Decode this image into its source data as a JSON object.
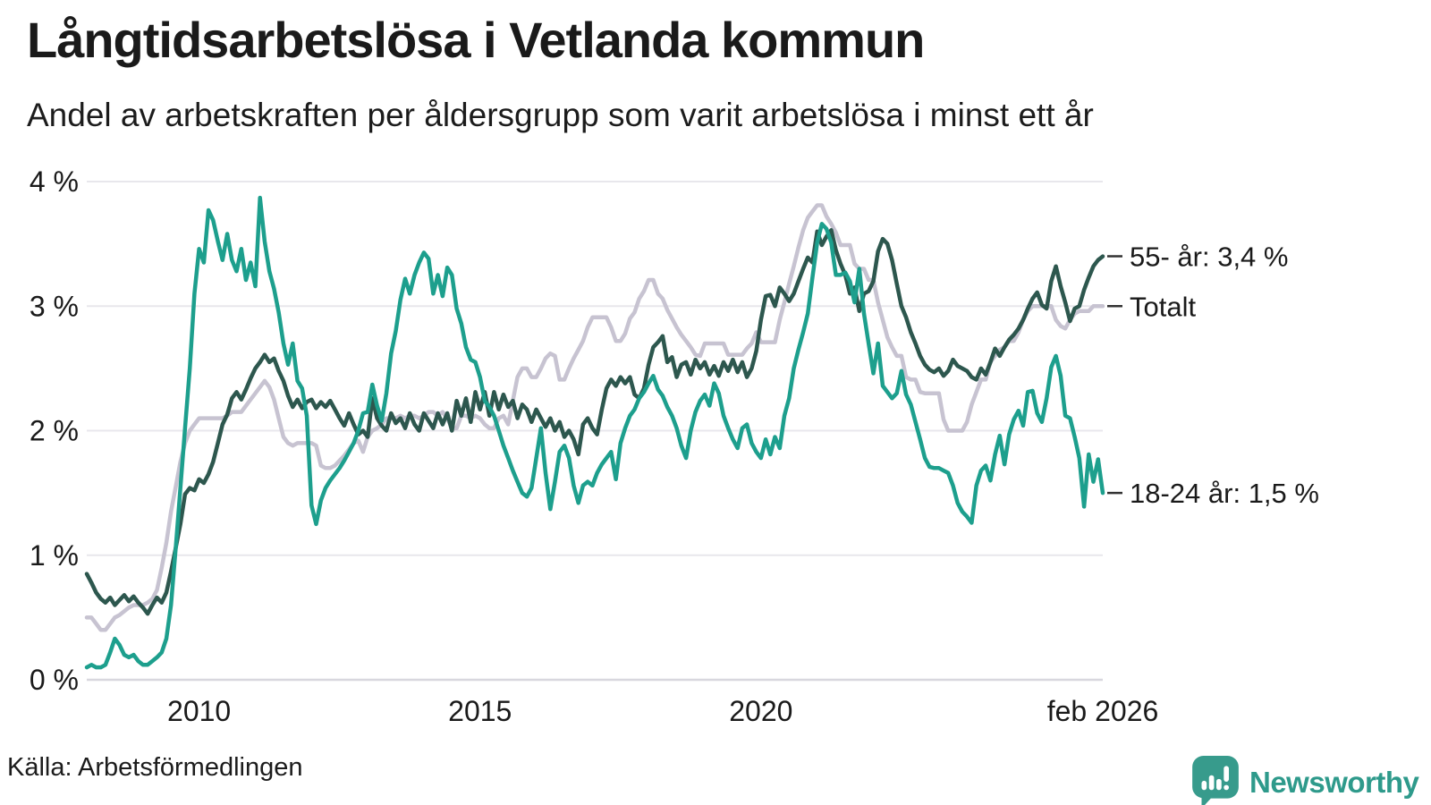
{
  "header": {
    "title": "Långtidsarbetslösa i Vetlanda kommun",
    "subtitle": "Andel av arbetskraften per åldersgrupp som varit arbetslösa i minst ett år"
  },
  "footer": {
    "source": "Källa: Arbetsförmedlingen",
    "brand": "Newsworthy"
  },
  "colors": {
    "series_18_24": "#1d9f8d",
    "series_55plus": "#2d574e",
    "series_total": "#c7c3d1",
    "gridline": "#e8e7ec",
    "axis_line": "#d8d7de",
    "text": "#1a1a1a",
    "brand_teal": "#379b8c"
  },
  "chart_data": {
    "type": "line",
    "title": "Långtidsarbetslösa i Vetlanda kommun",
    "subtitle": "Andel av arbetskraften per åldersgrupp som varit arbetslösa i minst ett år",
    "unit": "%",
    "frequency": "monthly",
    "x_start": "2008-01",
    "x_end": "2026-02",
    "ylim": [
      0,
      4
    ],
    "grid": true,
    "label_dash": "–",
    "y_ticks": [
      {
        "label": "0 %",
        "value": 0
      },
      {
        "label": "1 %",
        "value": 1
      },
      {
        "label": "2 %",
        "value": 2
      },
      {
        "label": "3 %",
        "value": 3
      },
      {
        "label": "4 %",
        "value": 4
      }
    ],
    "x_ticks": [
      {
        "label": "2010",
        "index": 24
      },
      {
        "label": "2015",
        "index": 84
      },
      {
        "label": "2020",
        "index": 144
      },
      {
        "label": "feb 2026",
        "index": 217
      }
    ],
    "series": [
      {
        "name": "Totalt",
        "label": "Totalt",
        "end_value": 3.0,
        "color": "#c7c3d1",
        "values": [
          0.5,
          0.5,
          0.45,
          0.4,
          0.4,
          0.45,
          0.5,
          0.52,
          0.55,
          0.58,
          0.6,
          0.6,
          0.6,
          0.62,
          0.65,
          0.72,
          0.9,
          1.1,
          1.35,
          1.55,
          1.75,
          1.9,
          2.0,
          2.05,
          2.1,
          2.1,
          2.1,
          2.1,
          2.1,
          2.1,
          2.12,
          2.15,
          2.15,
          2.15,
          2.2,
          2.25,
          2.3,
          2.35,
          2.4,
          2.35,
          2.25,
          2.1,
          1.95,
          1.9,
          1.88,
          1.9,
          1.9,
          1.9,
          1.9,
          1.88,
          1.72,
          1.7,
          1.7,
          1.72,
          1.76,
          1.8,
          1.85,
          1.9,
          1.92,
          1.83,
          1.95,
          2.0,
          2.02,
          2.05,
          2.1,
          2.1,
          2.1,
          2.12,
          2.1,
          2.12,
          2.12,
          2.1,
          2.12,
          2.15,
          2.15,
          2.12,
          2.15,
          2.1,
          2.02,
          2.02,
          2.12,
          2.12,
          2.1,
          2.12,
          2.1,
          2.05,
          2.02,
          2.02,
          2.1,
          2.12,
          2.05,
          2.24,
          2.43,
          2.5,
          2.5,
          2.43,
          2.43,
          2.5,
          2.58,
          2.62,
          2.6,
          2.41,
          2.41,
          2.5,
          2.58,
          2.65,
          2.72,
          2.83,
          2.91,
          2.91,
          2.91,
          2.91,
          2.83,
          2.72,
          2.72,
          2.78,
          2.9,
          2.95,
          3.06,
          3.12,
          3.21,
          3.21,
          3.1,
          3.06,
          2.97,
          2.9,
          2.83,
          2.77,
          2.72,
          2.67,
          2.61,
          2.6,
          2.7,
          2.7,
          2.7,
          2.7,
          2.7,
          2.61,
          2.61,
          2.61,
          2.61,
          2.66,
          2.7,
          2.79,
          2.71,
          2.71,
          2.71,
          2.71,
          2.89,
          3.03,
          3.18,
          3.32,
          3.47,
          3.61,
          3.71,
          3.76,
          3.81,
          3.81,
          3.72,
          3.66,
          3.59,
          3.49,
          3.49,
          3.49,
          3.34,
          3.3,
          3.3,
          3.21,
          3.21,
          3.03,
          2.89,
          2.75,
          2.67,
          2.6,
          2.6,
          2.43,
          2.41,
          2.41,
          2.31,
          2.3,
          2.3,
          2.3,
          2.3,
          2.09,
          2.0,
          2.0,
          2.0,
          2.0,
          2.07,
          2.21,
          2.31,
          2.41,
          2.41,
          2.55,
          2.6,
          2.65,
          2.67,
          2.72,
          2.72,
          2.79,
          2.89,
          2.96,
          3.0,
          3.0,
          3.0,
          3.0,
          3.0,
          2.89,
          2.84,
          2.82,
          2.89,
          2.94,
          2.96,
          2.96,
          2.96,
          3.0,
          3.0,
          3.0
        ]
      },
      {
        "name": "55- år",
        "label": "55- år: 3,4 %",
        "end_value": 3.4,
        "color": "#2d574e",
        "values": [
          0.85,
          0.78,
          0.7,
          0.65,
          0.62,
          0.66,
          0.6,
          0.64,
          0.68,
          0.63,
          0.67,
          0.62,
          0.58,
          0.53,
          0.6,
          0.66,
          0.62,
          0.7,
          0.87,
          1.06,
          1.25,
          1.49,
          1.54,
          1.52,
          1.61,
          1.58,
          1.65,
          1.75,
          1.9,
          2.05,
          2.13,
          2.26,
          2.31,
          2.25,
          2.33,
          2.42,
          2.5,
          2.55,
          2.61,
          2.55,
          2.58,
          2.48,
          2.4,
          2.28,
          2.19,
          2.25,
          2.18,
          2.23,
          2.25,
          2.18,
          2.23,
          2.19,
          2.24,
          2.17,
          2.1,
          2.04,
          2.14,
          2.05,
          1.97,
          2.0,
          1.95,
          2.26,
          2.1,
          2.04,
          2.0,
          2.14,
          2.06,
          2.1,
          2.02,
          2.14,
          2.05,
          2.0,
          2.14,
          2.08,
          2.02,
          2.14,
          2.05,
          2.14,
          2.0,
          2.24,
          2.12,
          2.26,
          2.07,
          2.31,
          2.17,
          2.31,
          2.12,
          2.31,
          2.17,
          2.29,
          2.19,
          2.24,
          2.1,
          2.21,
          2.17,
          2.07,
          2.17,
          2.1,
          2.03,
          2.1,
          2.0,
          2.07,
          1.95,
          2.0,
          1.93,
          1.81,
          2.05,
          2.1,
          2.02,
          1.97,
          2.17,
          2.34,
          2.41,
          2.36,
          2.43,
          2.38,
          2.43,
          2.29,
          2.26,
          2.34,
          2.53,
          2.67,
          2.71,
          2.76,
          2.55,
          2.59,
          2.43,
          2.53,
          2.55,
          2.45,
          2.57,
          2.5,
          2.55,
          2.45,
          2.52,
          2.44,
          2.55,
          2.48,
          2.57,
          2.47,
          2.55,
          2.43,
          2.5,
          2.64,
          2.89,
          3.08,
          3.09,
          3.0,
          3.15,
          3.1,
          3.04,
          3.1,
          3.2,
          3.3,
          3.39,
          3.35,
          3.6,
          3.49,
          3.56,
          3.61,
          3.45,
          3.34,
          3.25,
          3.1,
          3.15,
          2.96,
          3.1,
          3.12,
          3.2,
          3.44,
          3.54,
          3.5,
          3.37,
          3.18,
          3.0,
          2.91,
          2.79,
          2.7,
          2.6,
          2.53,
          2.49,
          2.47,
          2.5,
          2.44,
          2.48,
          2.57,
          2.52,
          2.5,
          2.48,
          2.43,
          2.41,
          2.5,
          2.45,
          2.55,
          2.66,
          2.6,
          2.67,
          2.73,
          2.77,
          2.82,
          2.89,
          2.98,
          3.06,
          3.11,
          3.01,
          2.98,
          3.2,
          3.32,
          3.16,
          3.03,
          2.88,
          2.98,
          3.0,
          3.13,
          3.23,
          3.32,
          3.37,
          3.4
        ]
      },
      {
        "name": "18-24 år",
        "label": "18-24 år: 1,5 %",
        "end_value": 1.5,
        "color": "#1d9f8d",
        "values": [
          0.1,
          0.12,
          0.1,
          0.1,
          0.12,
          0.22,
          0.33,
          0.28,
          0.2,
          0.18,
          0.2,
          0.15,
          0.12,
          0.12,
          0.15,
          0.18,
          0.22,
          0.33,
          0.6,
          1.06,
          1.54,
          2.02,
          2.5,
          3.1,
          3.46,
          3.35,
          3.77,
          3.69,
          3.52,
          3.37,
          3.58,
          3.37,
          3.28,
          3.46,
          3.21,
          3.35,
          3.16,
          3.87,
          3.52,
          3.28,
          3.14,
          2.95,
          2.7,
          2.53,
          2.7,
          2.4,
          2.34,
          2.12,
          1.4,
          1.25,
          1.44,
          1.54,
          1.6,
          1.65,
          1.7,
          1.76,
          1.83,
          1.9,
          2.0,
          2.14,
          2.15,
          2.37,
          2.2,
          2.08,
          2.3,
          2.62,
          2.8,
          3.05,
          3.22,
          3.1,
          3.25,
          3.35,
          3.43,
          3.38,
          3.1,
          3.25,
          3.08,
          3.31,
          3.25,
          2.98,
          2.86,
          2.67,
          2.57,
          2.55,
          2.43,
          2.24,
          2.19,
          2.12,
          2.0,
          1.88,
          1.78,
          1.68,
          1.59,
          1.5,
          1.47,
          1.54,
          1.78,
          2.02,
          1.66,
          1.37,
          1.59,
          1.83,
          1.88,
          1.78,
          1.56,
          1.42,
          1.56,
          1.59,
          1.56,
          1.66,
          1.73,
          1.78,
          1.83,
          1.61,
          1.9,
          2.02,
          2.12,
          2.17,
          2.26,
          2.31,
          2.38,
          2.44,
          2.33,
          2.28,
          2.19,
          2.12,
          2.02,
          1.88,
          1.78,
          2.0,
          2.15,
          2.24,
          2.29,
          2.2,
          2.38,
          2.3,
          2.12,
          2.02,
          1.93,
          1.86,
          2.02,
          2.05,
          1.9,
          1.83,
          1.78,
          1.93,
          1.81,
          1.95,
          1.86,
          2.12,
          2.26,
          2.5,
          2.65,
          2.79,
          2.94,
          3.23,
          3.51,
          3.66,
          3.62,
          3.51,
          3.25,
          3.25,
          3.27,
          3.2,
          3.03,
          3.3,
          2.94,
          2.7,
          2.46,
          2.7,
          2.36,
          2.31,
          2.26,
          2.3,
          2.48,
          2.29,
          2.21,
          2.07,
          1.93,
          1.78,
          1.71,
          1.7,
          1.7,
          1.68,
          1.66,
          1.56,
          1.42,
          1.35,
          1.31,
          1.26,
          1.56,
          1.68,
          1.72,
          1.6,
          1.81,
          1.96,
          1.73,
          1.97,
          2.09,
          2.16,
          2.04,
          2.31,
          2.32,
          2.14,
          2.07,
          2.26,
          2.51,
          2.6,
          2.44,
          2.12,
          2.1,
          1.95,
          1.78,
          1.39,
          1.81,
          1.59,
          1.77,
          1.5
        ]
      }
    ]
  }
}
